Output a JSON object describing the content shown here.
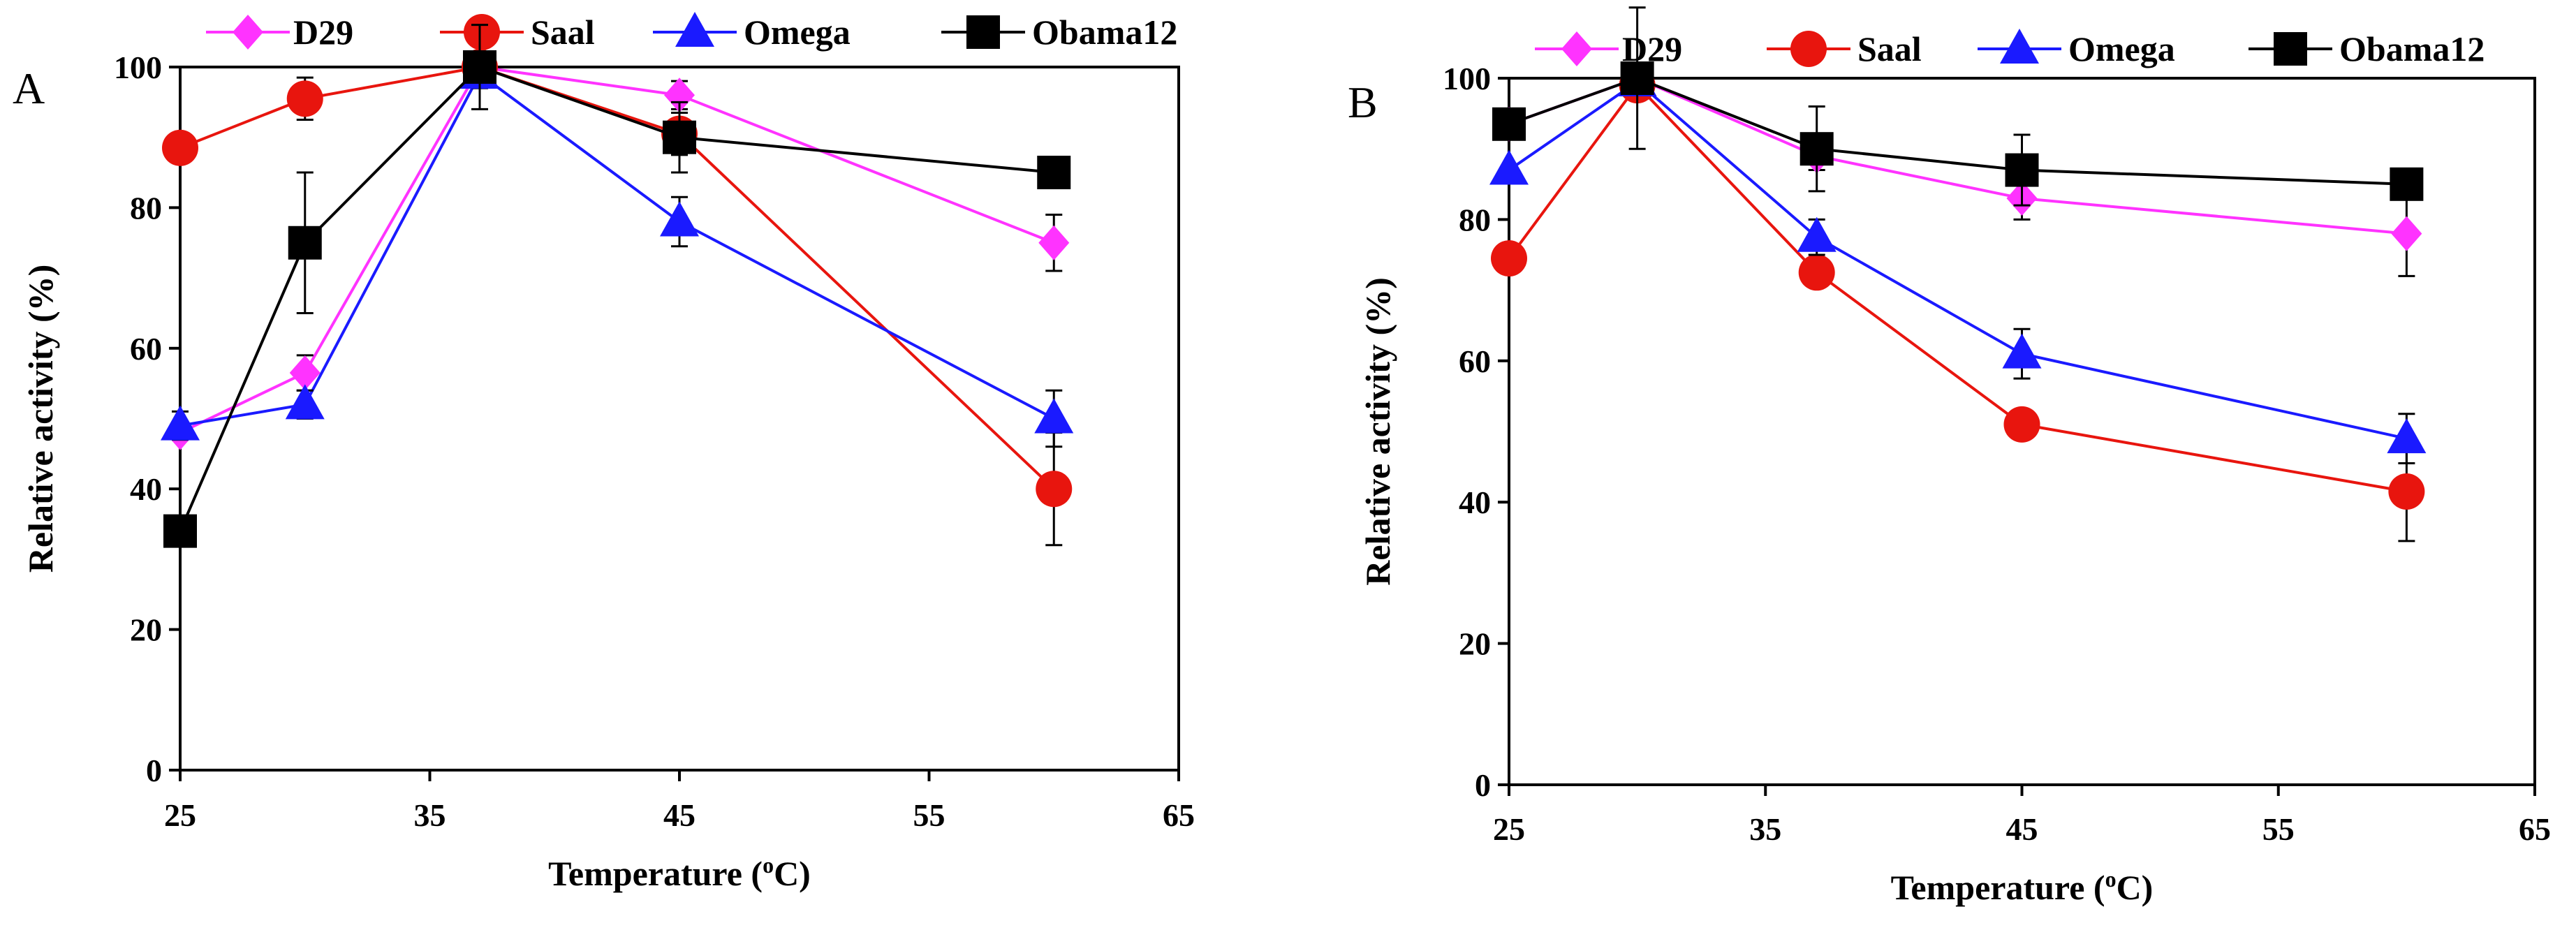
{
  "chart_data": [
    {
      "type": "line",
      "panel_label": "A",
      "xlabel": "Temperature (",
      "xlabel_sup": "o",
      "xlabel_end": "C)",
      "ylabel": "Relative activity (%)",
      "xlim": [
        25,
        65
      ],
      "ylim": [
        0,
        100
      ],
      "xticks": [
        25,
        35,
        45,
        55,
        65
      ],
      "yticks": [
        0,
        20,
        40,
        60,
        80,
        100
      ],
      "grid": false,
      "legend_position": "top",
      "series": [
        {
          "name": "D29",
          "color": "#ff33ff",
          "marker": "diamond",
          "x": [
            25,
            30,
            37,
            45,
            60
          ],
          "y": [
            48,
            56.5,
            100,
            96,
            75
          ],
          "err": [
            0,
            2.5,
            0,
            2,
            4
          ]
        },
        {
          "name": "Saal",
          "color": "#e8150e",
          "marker": "circle",
          "x": [
            25,
            30,
            37,
            45,
            60
          ],
          "y": [
            88.5,
            95.5,
            100,
            90.5,
            40
          ],
          "err": [
            0,
            3,
            0,
            3,
            8
          ]
        },
        {
          "name": "Omega",
          "color": "#1a1aff",
          "marker": "triangle",
          "x": [
            25,
            30,
            37,
            45,
            60
          ],
          "y": [
            49,
            52,
            99,
            78,
            50
          ],
          "err": [
            2,
            2,
            2,
            3.5,
            4
          ]
        },
        {
          "name": "Obama12",
          "color": "#000000",
          "marker": "square",
          "x": [
            25,
            30,
            37,
            45,
            60
          ],
          "y": [
            34,
            75,
            100,
            90,
            85
          ],
          "err": [
            2,
            10,
            6,
            5,
            2
          ]
        }
      ]
    },
    {
      "type": "line",
      "panel_label": "B",
      "xlabel": "Temperature (",
      "xlabel_sup": "o",
      "xlabel_end": "C)",
      "ylabel": "Relative activity (%)",
      "xlim": [
        25,
        65
      ],
      "ylim": [
        0,
        100
      ],
      "xticks": [
        25,
        35,
        45,
        55,
        65
      ],
      "yticks": [
        0,
        20,
        40,
        60,
        80,
        100
      ],
      "grid": false,
      "legend_position": "top",
      "series": [
        {
          "name": "D29",
          "color": "#ff33ff",
          "marker": "diamond",
          "x": [
            25,
            30,
            37,
            45,
            60
          ],
          "y": [
            93.5,
            100,
            89,
            83,
            78
          ],
          "err": [
            0,
            0,
            2,
            3,
            6
          ]
        },
        {
          "name": "Saal",
          "color": "#e8150e",
          "marker": "circle",
          "x": [
            25,
            30,
            37,
            45,
            60
          ],
          "y": [
            74.5,
            99,
            72.5,
            51,
            41.5
          ],
          "err": [
            0,
            0,
            0,
            0,
            7
          ]
        },
        {
          "name": "Omega",
          "color": "#1a1aff",
          "marker": "triangle",
          "x": [
            25,
            30,
            37,
            45,
            60
          ],
          "y": [
            87,
            99.5,
            77.5,
            61,
            49
          ],
          "err": [
            0,
            0,
            2.5,
            3.5,
            3.5
          ]
        },
        {
          "name": "Obama12",
          "color": "#000000",
          "marker": "square",
          "x": [
            25,
            30,
            37,
            45,
            60
          ],
          "y": [
            93.5,
            100,
            90,
            87,
            85
          ],
          "err": [
            0,
            10,
            6,
            5,
            2
          ]
        }
      ]
    }
  ]
}
